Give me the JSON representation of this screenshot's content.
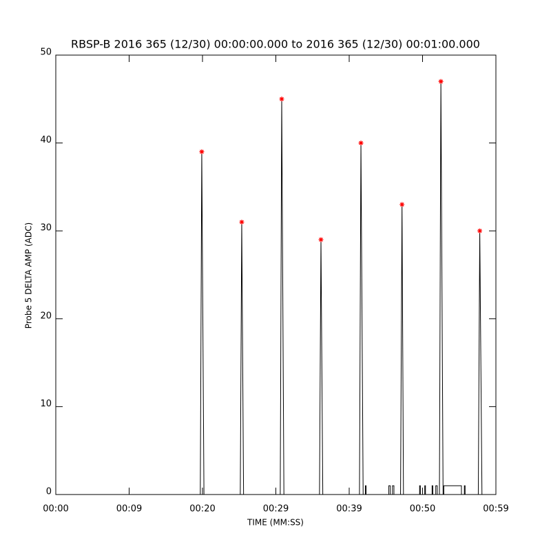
{
  "chart_data": {
    "type": "line",
    "title": "RBSP-B 2016 365 (12/30) 00:00:00.000 to 2016 365 (12/30) 00:01:00.000",
    "x_label": "TIME (MM:SS)",
    "y_label": "Probe 5 DELTA AMP (ADC)",
    "xlim": [
      0,
      60
    ],
    "xticks": [
      {
        "value": 0,
        "label": "00:00"
      },
      {
        "value": 10,
        "label": "00:09"
      },
      {
        "value": 20,
        "label": "00:20"
      },
      {
        "value": 30,
        "label": "00:29"
      },
      {
        "value": 40,
        "label": "00:39"
      },
      {
        "value": 50,
        "label": "00:50"
      },
      {
        "value": 60,
        "label": "00:59"
      }
    ],
    "ylim": [
      0,
      50
    ],
    "yticks": [
      0,
      10,
      20,
      30,
      40,
      50
    ],
    "series": [
      {
        "type": "line",
        "color": "#000000",
        "x": [
          0,
          19.7,
          19.9,
          20.2,
          25.15,
          25.35,
          25.6,
          30.6,
          30.8,
          31.1,
          35.95,
          36.15,
          36.4,
          41.4,
          41.6,
          41.9,
          42.2,
          42.2,
          42.3,
          42.3,
          45.4,
          45.4,
          45.6,
          45.6,
          45.9,
          45.9,
          46.1,
          46.1,
          47.0,
          47.2,
          47.4,
          49.6,
          49.6,
          49.7,
          49.7,
          50.3,
          50.3,
          50.4,
          50.4,
          51.3,
          51.3,
          51.4,
          51.4,
          51.8,
          51.8,
          52.0,
          52.0,
          52.3,
          52.5,
          52.8,
          52.9,
          52.9,
          55.3,
          55.3,
          55.7,
          55.7,
          55.8,
          55.8,
          57.6,
          57.8,
          58.1,
          59.0
        ],
        "values": [
          0,
          0,
          39,
          0,
          0,
          31,
          0,
          0,
          45,
          0,
          0,
          29,
          0,
          0,
          40,
          0,
          0,
          1,
          1,
          0,
          0,
          1,
          1,
          0,
          0,
          1,
          1,
          0,
          0,
          33,
          0,
          0,
          1,
          1,
          0,
          0,
          1,
          1,
          0,
          0,
          1,
          1,
          0,
          0,
          1,
          1,
          0,
          0,
          47,
          0,
          0,
          1,
          1,
          0,
          0,
          1,
          1,
          0,
          0,
          30,
          0,
          0
        ]
      },
      {
        "type": "scatter",
        "color": "#ff0000",
        "x": [
          19.9,
          25.35,
          30.8,
          36.15,
          41.6,
          47.2,
          52.5,
          57.8
        ],
        "values": [
          39,
          31,
          45,
          29,
          40,
          33,
          47,
          30
        ]
      }
    ]
  }
}
